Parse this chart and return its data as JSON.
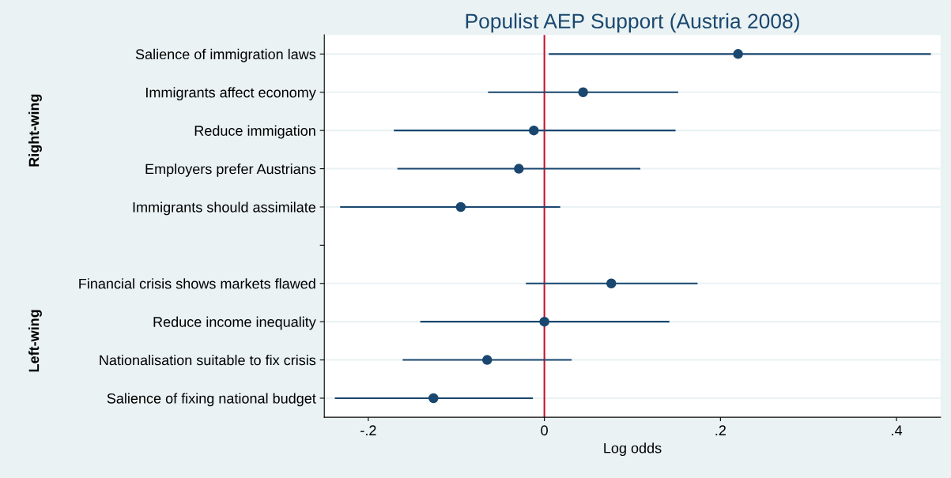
{
  "chart_data": {
    "type": "scatter",
    "orientation": "horizontal",
    "title": "Populist AEP Support (Austria 2008)",
    "xlabel": "Log odds",
    "categories": [
      "Salience of immigration laws",
      "Immigrants affect economy",
      "Reduce immigation",
      "Employers prefer Austrians",
      "Immigrants should assimilate",
      null,
      "Financial crisis shows markets flawed",
      "Reduce income inequality",
      "Nationalisation suitable to fix crisis",
      "Salience of fixing national budget"
    ],
    "color": "#1a476f",
    "values": [
      0.22,
      0.044,
      -0.012,
      -0.029,
      -0.095,
      null,
      0.076,
      0.0,
      -0.065,
      -0.126
    ],
    "errors": [
      [
        0.005,
        0.439
      ],
      [
        -0.064,
        0.152
      ],
      [
        -0.171,
        0.149
      ],
      [
        -0.167,
        0.109
      ],
      [
        -0.232,
        0.018
      ],
      null,
      [
        -0.021,
        0.174
      ],
      [
        -0.141,
        0.142
      ],
      [
        -0.161,
        0.031
      ],
      [
        -0.238,
        -0.013
      ]
    ],
    "xlim": [
      -0.25,
      0.45
    ],
    "xticks": [
      {
        "value": -0.2,
        "label": "-.2"
      },
      0,
      {
        "value": 0.2,
        "label": ".2"
      },
      {
        "value": 0.4,
        "label": ".4"
      }
    ],
    "ref_lines": [
      {
        "axis": "x",
        "value": 0,
        "color": "#c8102e"
      }
    ],
    "annotations": [
      "Right-wing",
      "Left-wing"
    ],
    "grid": "y",
    "legend": false,
    "marker": "circle"
  }
}
